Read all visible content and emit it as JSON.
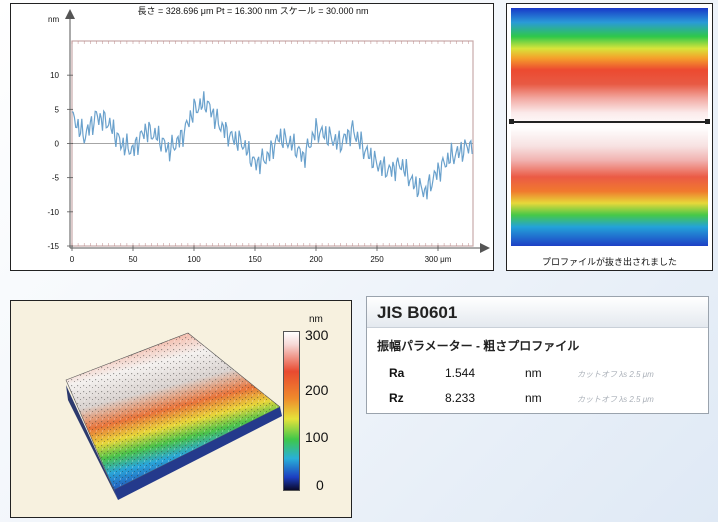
{
  "profile": {
    "header": "長さ = 328.696 μm  Pt = 16.300 nm  スケール = 30.000 nm",
    "y_unit": "nm",
    "x_unit": "μm",
    "y_ticks": [
      "10",
      "5",
      "0",
      "-5",
      "-10",
      "-15"
    ],
    "x_ticks": [
      "0",
      "50",
      "100",
      "150",
      "200",
      "250",
      "300 μm"
    ]
  },
  "map": {
    "caption": "プロファイルが抜き出されました"
  },
  "view3d": {
    "unit": "nm",
    "scale_labels": [
      "300",
      "200",
      "100",
      "0"
    ]
  },
  "jis": {
    "title": "JIS B0601",
    "subtitle": "振幅パラメーター - 粗さプロファイル",
    "rows": [
      {
        "name": "Ra",
        "value": "1.544",
        "unit": "nm",
        "note": "カットオフ λs 2.5 μm"
      },
      {
        "name": "Rz",
        "value": "8.233",
        "unit": "nm",
        "note": "カットオフ λs 2.5 μm"
      }
    ]
  },
  "chart_data": {
    "type": "line",
    "title": "長さ = 328.696 μm  Pt = 16.300 nm  スケール = 30.000 nm",
    "xlabel": "μm",
    "ylabel": "nm",
    "xlim": [
      0,
      328.696
    ],
    "ylim": [
      -15,
      15
    ],
    "series": [
      {
        "x": [
          0,
          10,
          20,
          30,
          40,
          50,
          60,
          70,
          80,
          90,
          100,
          110,
          120,
          130,
          140,
          150,
          160,
          170,
          180,
          190,
          200,
          210,
          220,
          230,
          240,
          250,
          260,
          270,
          280,
          290,
          300,
          310,
          320,
          328
        ],
        "values": [
          4,
          1,
          4,
          3,
          0,
          -1,
          2,
          1,
          -1,
          1,
          5,
          6,
          3,
          1,
          0,
          -3,
          -2,
          1,
          0,
          -2,
          2,
          1,
          0,
          2,
          -1,
          -3,
          -4,
          -3,
          -6,
          -7,
          -4,
          -2,
          -1,
          0
        ]
      }
    ]
  }
}
